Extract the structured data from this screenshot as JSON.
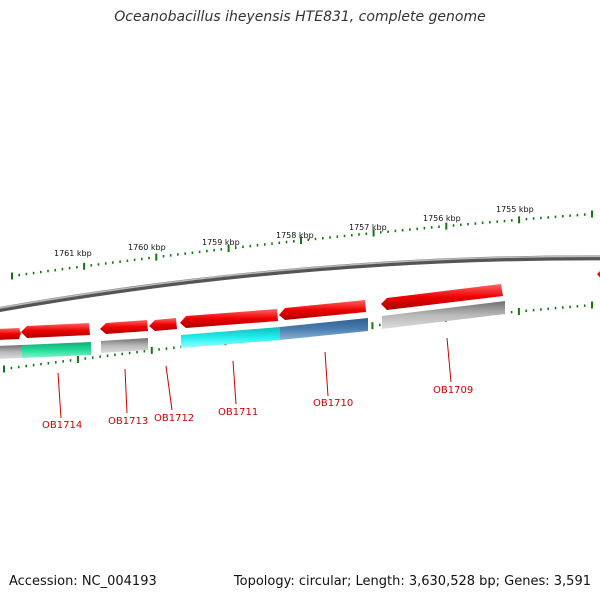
{
  "title": "Oceanobacillus iheyensis HTE831, complete genome",
  "accession": "Accession: NC_004193",
  "topology": "Topology: circular; Length: 3,630,528 bp; Genes: 3,591",
  "kbp_labels": [
    "1761 kbp",
    "1760 kbp",
    "1759 kbp",
    "1758 kbp",
    "1757 kbp",
    "1756 kbp",
    "1755 kbp"
  ],
  "gene_labels": [
    "OB1714",
    "OB1713",
    "OB1712",
    "OB1711",
    "OB1710",
    "OB1709"
  ],
  "colors": {
    "gene_red": "#ee0000",
    "backbone": "#808080",
    "tick": "#117711",
    "label_red": "#cc0000",
    "green_feature": "#22dd99",
    "cyan_feature": "#22eeee",
    "blue_feature": "#4a7eb0",
    "gray_feature": "#b0b0b0"
  }
}
